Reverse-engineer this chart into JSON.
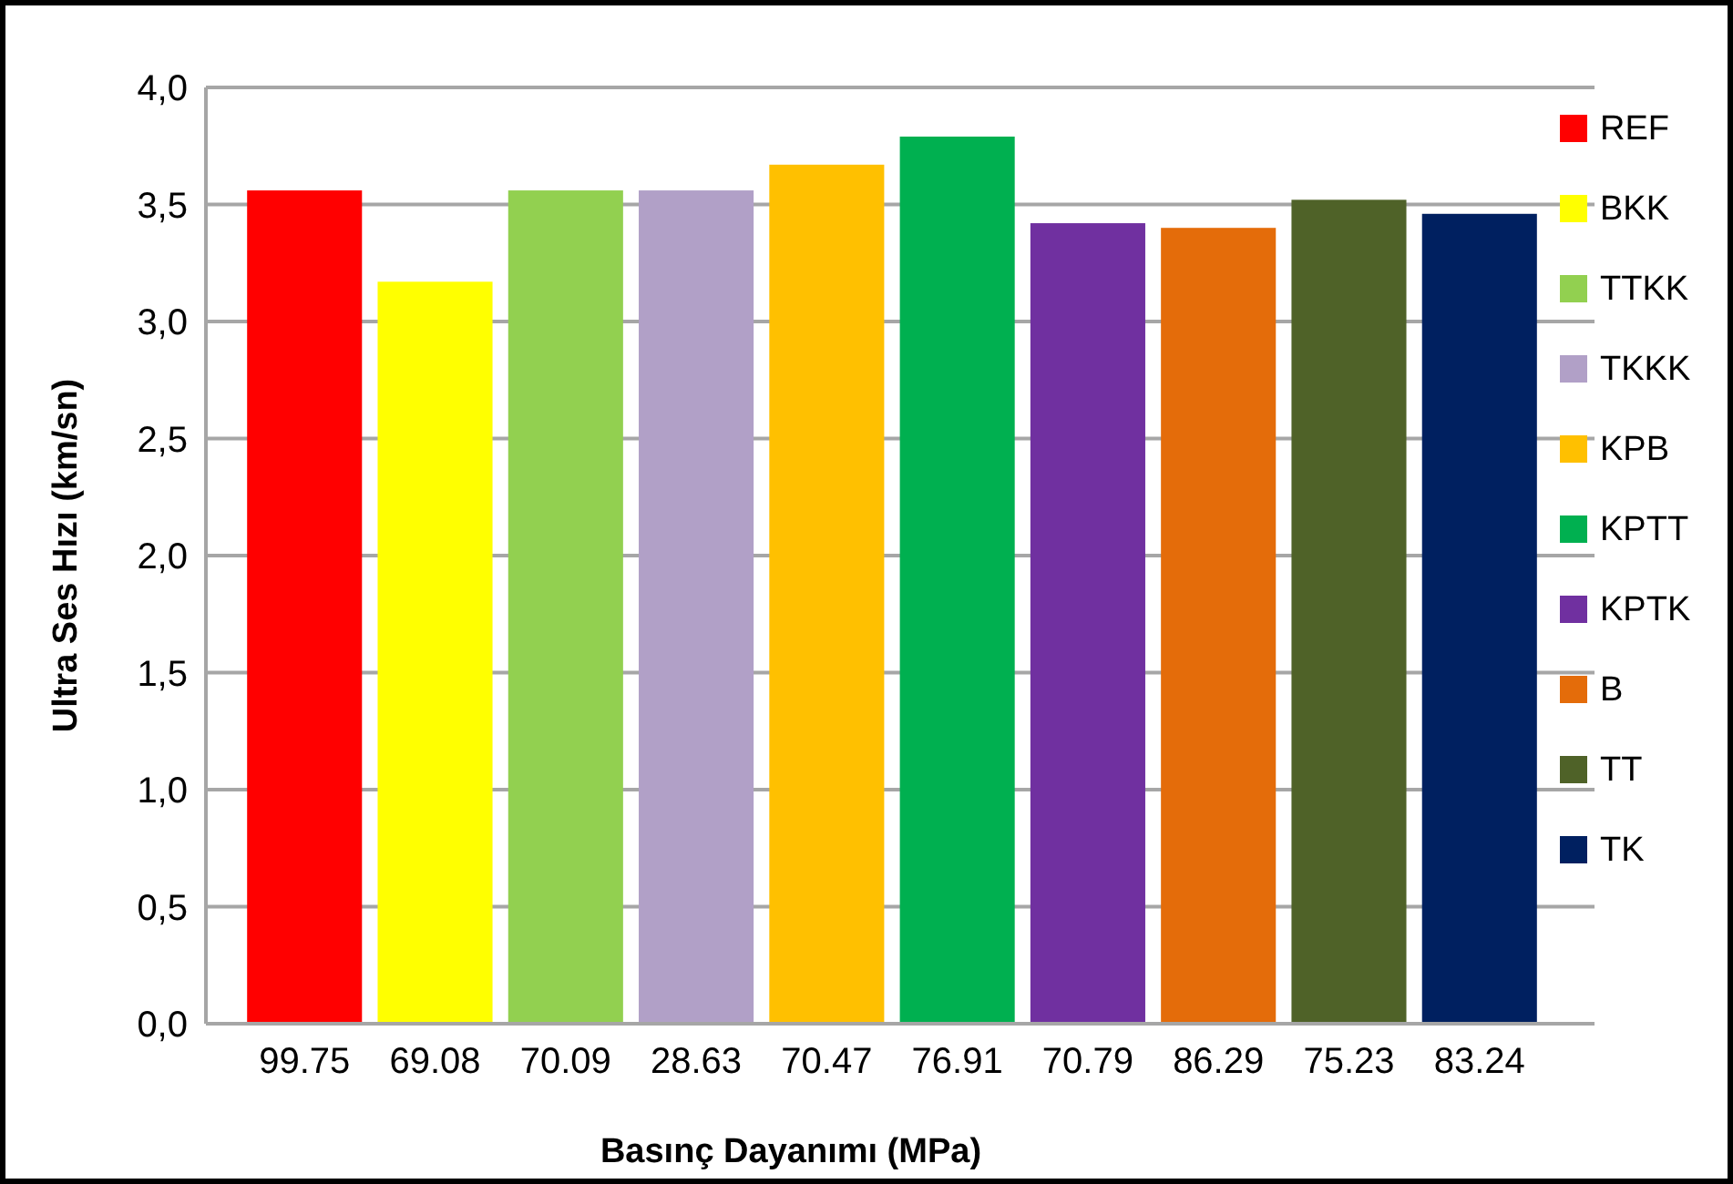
{
  "chart_data": {
    "type": "bar",
    "xlabel": "Basınç Dayanımı (MPa)",
    "ylabel": "Ultra Ses Hızı (km/sn)",
    "categories": [
      "99.75",
      "69.08",
      "70.09",
      "28.63",
      "70.47",
      "76.91",
      "70.79",
      "86.29",
      "75.23",
      "83.24"
    ],
    "series": [
      {
        "name": "REF",
        "color": "#ff0000",
        "values": [
          3.56,
          null,
          null,
          null,
          null,
          null,
          null,
          null,
          null,
          null
        ]
      },
      {
        "name": "BKK",
        "color": "#ffff00",
        "values": [
          null,
          3.17,
          null,
          null,
          null,
          null,
          null,
          null,
          null,
          null
        ]
      },
      {
        "name": "TTKK",
        "color": "#92d050",
        "values": [
          null,
          null,
          3.56,
          null,
          null,
          null,
          null,
          null,
          null,
          null
        ]
      },
      {
        "name": "TKKK",
        "color": "#b1a0c7",
        "values": [
          null,
          null,
          null,
          3.56,
          null,
          null,
          null,
          null,
          null,
          null
        ]
      },
      {
        "name": "KPB",
        "color": "#ffc000",
        "values": [
          null,
          null,
          null,
          null,
          3.67,
          null,
          null,
          null,
          null,
          null
        ]
      },
      {
        "name": "KPTT",
        "color": "#00b050",
        "values": [
          null,
          null,
          null,
          null,
          null,
          3.79,
          null,
          null,
          null,
          null
        ]
      },
      {
        "name": "KPTK",
        "color": "#7030a0",
        "values": [
          null,
          null,
          null,
          null,
          null,
          null,
          3.42,
          null,
          null,
          null
        ]
      },
      {
        "name": "B",
        "color": "#e46c0a",
        "values": [
          null,
          null,
          null,
          null,
          null,
          null,
          null,
          3.4,
          null,
          null
        ]
      },
      {
        "name": "TT",
        "color": "#4f6228",
        "values": [
          null,
          null,
          null,
          null,
          null,
          null,
          null,
          null,
          3.52,
          null
        ]
      },
      {
        "name": "TK",
        "color": "#002060",
        "values": [
          null,
          null,
          null,
          null,
          null,
          null,
          null,
          null,
          null,
          3.46
        ]
      }
    ],
    "ylim": [
      0,
      4
    ],
    "yticks": [
      {
        "value": 0,
        "label": "0,0"
      },
      {
        "value": 0.5,
        "label": "0,5"
      },
      {
        "value": 1,
        "label": "1,0"
      },
      {
        "value": 1.5,
        "label": "1,5"
      },
      {
        "value": 2,
        "label": "2,0"
      },
      {
        "value": 2.5,
        "label": "2,5"
      },
      {
        "value": 3,
        "label": "3,0"
      },
      {
        "value": 3.5,
        "label": "3,5"
      },
      {
        "value": 4,
        "label": "4,0"
      }
    ],
    "grid": "y",
    "legend": "right"
  }
}
